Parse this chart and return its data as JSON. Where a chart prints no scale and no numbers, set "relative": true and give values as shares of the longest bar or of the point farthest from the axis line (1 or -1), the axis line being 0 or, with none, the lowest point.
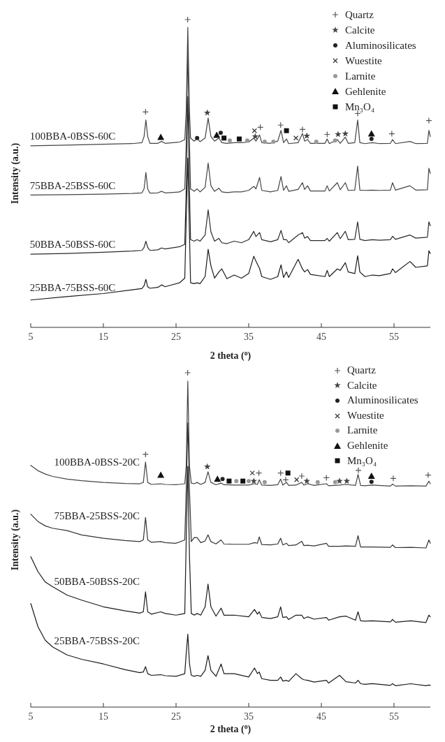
{
  "chart_data": [
    {
      "type": "line",
      "relative": true,
      "xlabel": "2 theta ($^{o}$)",
      "ylabel": "Intensity (a.u.)",
      "xlim": [
        5,
        60
      ],
      "xticks": [
        5,
        15,
        25,
        35,
        45,
        55
      ],
      "legend": "top right",
      "x": [
        5,
        10,
        15,
        19,
        20.3,
        20.6,
        20.85,
        21.1,
        21.4,
        22.5,
        23,
        23.5,
        25.5,
        26.2,
        26.4,
        26.62,
        26.85,
        27,
        27.5,
        27.9,
        28.3,
        29,
        29.42,
        29.8,
        30.3,
        30.9,
        31.3,
        32,
        33,
        34,
        35,
        35.7,
        36,
        36.5,
        36.8,
        38,
        39,
        39.45,
        39.8,
        40.2,
        40.5,
        41.8,
        42.4,
        42.7,
        43.1,
        43.5,
        45.5,
        45.8,
        46.1,
        47.2,
        47.6,
        48.3,
        48.7,
        49.6,
        50,
        50.3,
        51,
        52,
        53,
        54.5,
        54.8,
        55.2,
        57.2,
        58,
        59.6,
        59.8,
        60
      ],
      "series": [
        {
          "name": "100BBA-0BSS-60C",
          "color": "#444444",
          "values": [
            0.59,
            0.592,
            0.595,
            0.597,
            0.6,
            0.62,
            0.674,
            0.62,
            0.598,
            0.598,
            0.604,
            0.598,
            0.602,
            0.61,
            0.7,
            0.975,
            0.7,
            0.615,
            0.605,
            0.614,
            0.603,
            0.615,
            0.68,
            0.62,
            0.605,
            0.615,
            0.6,
            0.598,
            0.6,
            0.6,
            0.602,
            0.615,
            0.605,
            0.625,
            0.6,
            0.598,
            0.605,
            0.64,
            0.6,
            0.612,
            0.597,
            0.6,
            0.63,
            0.605,
            0.61,
            0.598,
            0.598,
            0.612,
            0.597,
            0.61,
            0.598,
            0.618,
            0.598,
            0.6,
            0.674,
            0.6,
            0.597,
            0.6,
            0.597,
            0.598,
            0.61,
            0.597,
            0.604,
            0.597,
            0.598,
            0.64,
            0.62
          ]
        },
        {
          "name": "75BBA-25BSS-60C",
          "color": "#444444",
          "values": [
            0.43,
            0.431,
            0.433,
            0.435,
            0.437,
            0.45,
            0.503,
            0.45,
            0.436,
            0.437,
            0.442,
            0.437,
            0.44,
            0.45,
            0.6,
            0.9,
            0.6,
            0.45,
            0.442,
            0.45,
            0.44,
            0.455,
            0.534,
            0.46,
            0.442,
            0.452,
            0.44,
            0.438,
            0.44,
            0.44,
            0.445,
            0.458,
            0.45,
            0.487,
            0.445,
            0.44,
            0.445,
            0.49,
            0.445,
            0.46,
            0.442,
            0.448,
            0.47,
            0.448,
            0.46,
            0.443,
            0.443,
            0.46,
            0.443,
            0.47,
            0.447,
            0.47,
            0.445,
            0.446,
            0.524,
            0.446,
            0.445,
            0.446,
            0.445,
            0.446,
            0.47,
            0.446,
            0.46,
            0.446,
            0.447,
            0.517,
            0.5
          ]
        },
        {
          "name": "50BBA-50BSS-60C",
          "color": "#2a2a2a",
          "values": [
            0.238,
            0.24,
            0.244,
            0.248,
            0.25,
            0.26,
            0.28,
            0.26,
            0.25,
            0.252,
            0.258,
            0.255,
            0.262,
            0.27,
            0.45,
            0.75,
            0.45,
            0.285,
            0.28,
            0.285,
            0.28,
            0.3,
            0.382,
            0.31,
            0.28,
            0.289,
            0.275,
            0.272,
            0.28,
            0.275,
            0.285,
            0.312,
            0.295,
            0.308,
            0.285,
            0.278,
            0.285,
            0.315,
            0.285,
            0.285,
            0.275,
            0.3,
            0.308,
            0.29,
            0.295,
            0.282,
            0.282,
            0.289,
            0.28,
            0.308,
            0.288,
            0.312,
            0.285,
            0.286,
            0.343,
            0.286,
            0.282,
            0.285,
            0.283,
            0.285,
            0.296,
            0.286,
            0.3,
            0.29,
            0.293,
            0.343,
            0.33
          ]
        },
        {
          "name": "25BBA-75BSS-60C",
          "color": "#1a1a1a",
          "values": [
            0.089,
            0.1,
            0.11,
            0.122,
            0.126,
            0.135,
            0.156,
            0.132,
            0.127,
            0.13,
            0.138,
            0.132,
            0.145,
            0.16,
            0.35,
            0.55,
            0.3,
            0.145,
            0.142,
            0.145,
            0.142,
            0.165,
            0.254,
            0.2,
            0.16,
            0.18,
            0.19,
            0.158,
            0.17,
            0.16,
            0.175,
            0.231,
            0.215,
            0.191,
            0.165,
            0.156,
            0.165,
            0.203,
            0.162,
            0.18,
            0.162,
            0.221,
            0.19,
            0.18,
            0.188,
            0.172,
            0.165,
            0.185,
            0.165,
            0.19,
            0.185,
            0.21,
            0.18,
            0.175,
            0.233,
            0.18,
            0.165,
            0.17,
            0.168,
            0.175,
            0.19,
            0.178,
            0.214,
            0.195,
            0.2,
            0.249,
            0.24
          ]
        },
        {
          "type": "scatter",
          "name": "Quartz",
          "marker": "cross",
          "color": "#555555",
          "x": [
            20.8,
            26.6,
            36.6,
            39.4,
            42.4,
            45.8,
            50,
            54.7,
            59.8
          ],
          "values": [
            0.7,
            1,
            0.65,
            0.657,
            0.643,
            0.627,
            0.695,
            0.629,
            0.672
          ]
        },
        {
          "type": "scatter",
          "name": "Calcite",
          "marker": "star",
          "color": "#444444",
          "x": [
            29.3,
            35.9,
            43,
            47.3,
            48.3
          ],
          "values": [
            0.697,
            0.62,
            0.622,
            0.627,
            0.629
          ]
        },
        {
          "type": "scatter",
          "name": "Aluminosilicates",
          "marker": "circle",
          "color": "#222222",
          "x": [
            27.9,
            31.15,
            51.9
          ],
          "values": [
            0.615,
            0.632,
            0.612
          ]
        },
        {
          "type": "scatter",
          "name": "Wuestite",
          "marker": "x",
          "color": "#333333",
          "x": [
            35.8,
            41.5
          ],
          "values": [
            0.639,
            0.615
          ]
        },
        {
          "type": "scatter",
          "name": "Larnite",
          "marker": "circle",
          "color": "#999999",
          "x": [
            32.4,
            34.8,
            37.2,
            38.4,
            44.3,
            46.9
          ],
          "values": [
            0.607,
            0.607,
            0.603,
            0.603,
            0.603,
            0.607
          ]
        },
        {
          "type": "scatter",
          "name": "Gehlenite",
          "marker": "triangle",
          "color": "#111111",
          "x": [
            22.9,
            30.6,
            51.9
          ],
          "values": [
            0.618,
            0.625,
            0.629
          ]
        },
        {
          "type": "scatter",
          "name": "Mn₃O₄",
          "marker": "square",
          "color": "#111111",
          "x": [
            31.6,
            33.7,
            40.2
          ],
          "values": [
            0.615,
            0.612,
            0.639
          ]
        }
      ]
    },
    {
      "type": "line",
      "relative": true,
      "xlabel": "2 theta ($^{o}$)",
      "ylabel": "Intensity (a.u.)",
      "xlim": [
        5,
        60
      ],
      "xticks": [
        5,
        15,
        25,
        35,
        45,
        55
      ],
      "legend": "top right",
      "x": [
        5,
        6,
        7,
        8,
        10,
        12,
        15,
        18,
        20,
        20.5,
        20.8,
        21.1,
        21.6,
        22.9,
        23.5,
        25,
        26.2,
        26.4,
        26.62,
        26.85,
        27.1,
        27.5,
        27.9,
        28.4,
        29,
        29.4,
        29.8,
        30.5,
        31.2,
        31.6,
        33,
        35,
        35.8,
        36.2,
        36.45,
        36.8,
        38,
        39,
        39.4,
        39.7,
        40.2,
        40.5,
        41.5,
        42.3,
        42.6,
        43.1,
        44,
        45.7,
        46,
        47.5,
        48.4,
        49.7,
        50.05,
        50.4,
        51,
        52,
        54.5,
        54.8,
        55.2,
        57.3,
        59.4,
        59.8,
        60
      ],
      "series": [
        {
          "name": "100BBA-0BSS-20C",
          "color": "#444444",
          "values": [
            0.723,
            0.707,
            0.697,
            0.69,
            0.682,
            0.677,
            0.672,
            0.669,
            0.668,
            0.672,
            0.733,
            0.672,
            0.666,
            0.668,
            0.666,
            0.665,
            0.668,
            0.72,
            0.975,
            0.72,
            0.67,
            0.668,
            0.672,
            0.666,
            0.672,
            0.704,
            0.672,
            0.665,
            0.67,
            0.665,
            0.664,
            0.664,
            0.668,
            0.666,
            0.68,
            0.664,
            0.663,
            0.665,
            0.682,
            0.664,
            0.672,
            0.663,
            0.664,
            0.672,
            0.664,
            0.668,
            0.663,
            0.668,
            0.662,
            0.664,
            0.666,
            0.663,
            0.696,
            0.663,
            0.662,
            0.664,
            0.661,
            0.667,
            0.661,
            0.662,
            0.661,
            0.676,
            0.668
          ]
        },
        {
          "name": "75BBA-25BSS-20C",
          "color": "#333333",
          "values": [
            0.577,
            0.555,
            0.542,
            0.535,
            0.528,
            0.515,
            0.505,
            0.498,
            0.495,
            0.5,
            0.567,
            0.5,
            0.493,
            0.495,
            0.492,
            0.49,
            0.5,
            0.65,
            0.85,
            0.65,
            0.495,
            0.507,
            0.507,
            0.492,
            0.497,
            0.515,
            0.495,
            0.488,
            0.5,
            0.488,
            0.487,
            0.487,
            0.492,
            0.49,
            0.509,
            0.486,
            0.485,
            0.488,
            0.505,
            0.485,
            0.49,
            0.483,
            0.485,
            0.496,
            0.483,
            0.484,
            0.482,
            0.49,
            0.481,
            0.481,
            0.482,
            0.481,
            0.513,
            0.479,
            0.479,
            0.479,
            0.478,
            0.485,
            0.477,
            0.478,
            0.476,
            0.5,
            0.49
          ]
        },
        {
          "name": "50BBA-50BSS-20C",
          "color": "#1a1a1a",
          "values": [
            0.45,
            0.405,
            0.374,
            0.36,
            0.335,
            0.32,
            0.3,
            0.288,
            0.281,
            0.285,
            0.345,
            0.285,
            0.278,
            0.285,
            0.28,
            0.275,
            0.28,
            0.5,
            0.72,
            0.45,
            0.28,
            0.275,
            0.28,
            0.275,
            0.3,
            0.368,
            0.3,
            0.272,
            0.296,
            0.275,
            0.275,
            0.27,
            0.292,
            0.278,
            0.285,
            0.268,
            0.265,
            0.27,
            0.3,
            0.268,
            0.27,
            0.262,
            0.275,
            0.275,
            0.265,
            0.27,
            0.263,
            0.268,
            0.26,
            0.27,
            0.272,
            0.26,
            0.285,
            0.258,
            0.257,
            0.258,
            0.255,
            0.262,
            0.254,
            0.258,
            0.253,
            0.275,
            0.27
          ]
        },
        {
          "name": "25BBA-75BSS-20C",
          "color": "#1a1a1a",
          "values": [
            0.31,
            0.24,
            0.2,
            0.18,
            0.156,
            0.143,
            0.129,
            0.112,
            0.103,
            0.105,
            0.121,
            0.1,
            0.095,
            0.097,
            0.094,
            0.092,
            0.1,
            0.16,
            0.218,
            0.13,
            0.095,
            0.092,
            0.095,
            0.092,
            0.11,
            0.154,
            0.11,
            0.092,
            0.129,
            0.1,
            0.1,
            0.09,
            0.117,
            0.1,
            0.105,
            0.085,
            0.08,
            0.08,
            0.09,
            0.078,
            0.08,
            0.077,
            0.1,
            0.085,
            0.082,
            0.08,
            0.075,
            0.08,
            0.072,
            0.095,
            0.076,
            0.072,
            0.08,
            0.07,
            0.068,
            0.07,
            0.065,
            0.07,
            0.064,
            0.07,
            0.064,
            0.066,
            0.065
          ]
        },
        {
          "type": "scatter",
          "name": "Quartz",
          "marker": "cross",
          "color": "#555555",
          "x": [
            20.8,
            26.6,
            36.4,
            39.4,
            40.1,
            42.3,
            45.7,
            50.1,
            54.9,
            59.7
          ],
          "values": [
            0.756,
            1,
            0.7,
            0.7,
            0.68,
            0.691,
            0.686,
            0.708,
            0.684,
            0.694
          ]
        },
        {
          "type": "scatter",
          "name": "Calcite",
          "marker": "star",
          "color": "#444444",
          "x": [
            29.3,
            35.7,
            43,
            47.5,
            48.5
          ],
          "values": [
            0.719,
            0.676,
            0.676,
            0.676,
            0.676
          ]
        },
        {
          "type": "scatter",
          "name": "Aluminosilicates",
          "marker": "circle",
          "color": "#222222",
          "x": [
            31.4,
            51.9
          ],
          "values": [
            0.682,
            0.674
          ]
        },
        {
          "type": "scatter",
          "name": "Wuestite",
          "marker": "x",
          "color": "#333333",
          "x": [
            35.5,
            41.6
          ],
          "values": [
            0.7,
            0.68
          ]
        },
        {
          "type": "scatter",
          "name": "Larnite",
          "marker": "circle",
          "color": "#999999",
          "x": [
            33.3,
            35,
            37.2,
            44.5,
            46.9
          ],
          "values": [
            0.676,
            0.676,
            0.673,
            0.673,
            0.673
          ]
        },
        {
          "type": "scatter",
          "name": "Gehlenite",
          "marker": "triangle",
          "color": "#111111",
          "x": [
            22.9,
            30.7,
            51.9
          ],
          "values": [
            0.694,
            0.682,
            0.691
          ]
        },
        {
          "type": "scatter",
          "name": "Mn₃O₄",
          "marker": "square",
          "color": "#111111",
          "x": [
            32.3,
            34.2,
            40.4
          ],
          "values": [
            0.676,
            0.676,
            0.7
          ]
        }
      ]
    }
  ]
}
